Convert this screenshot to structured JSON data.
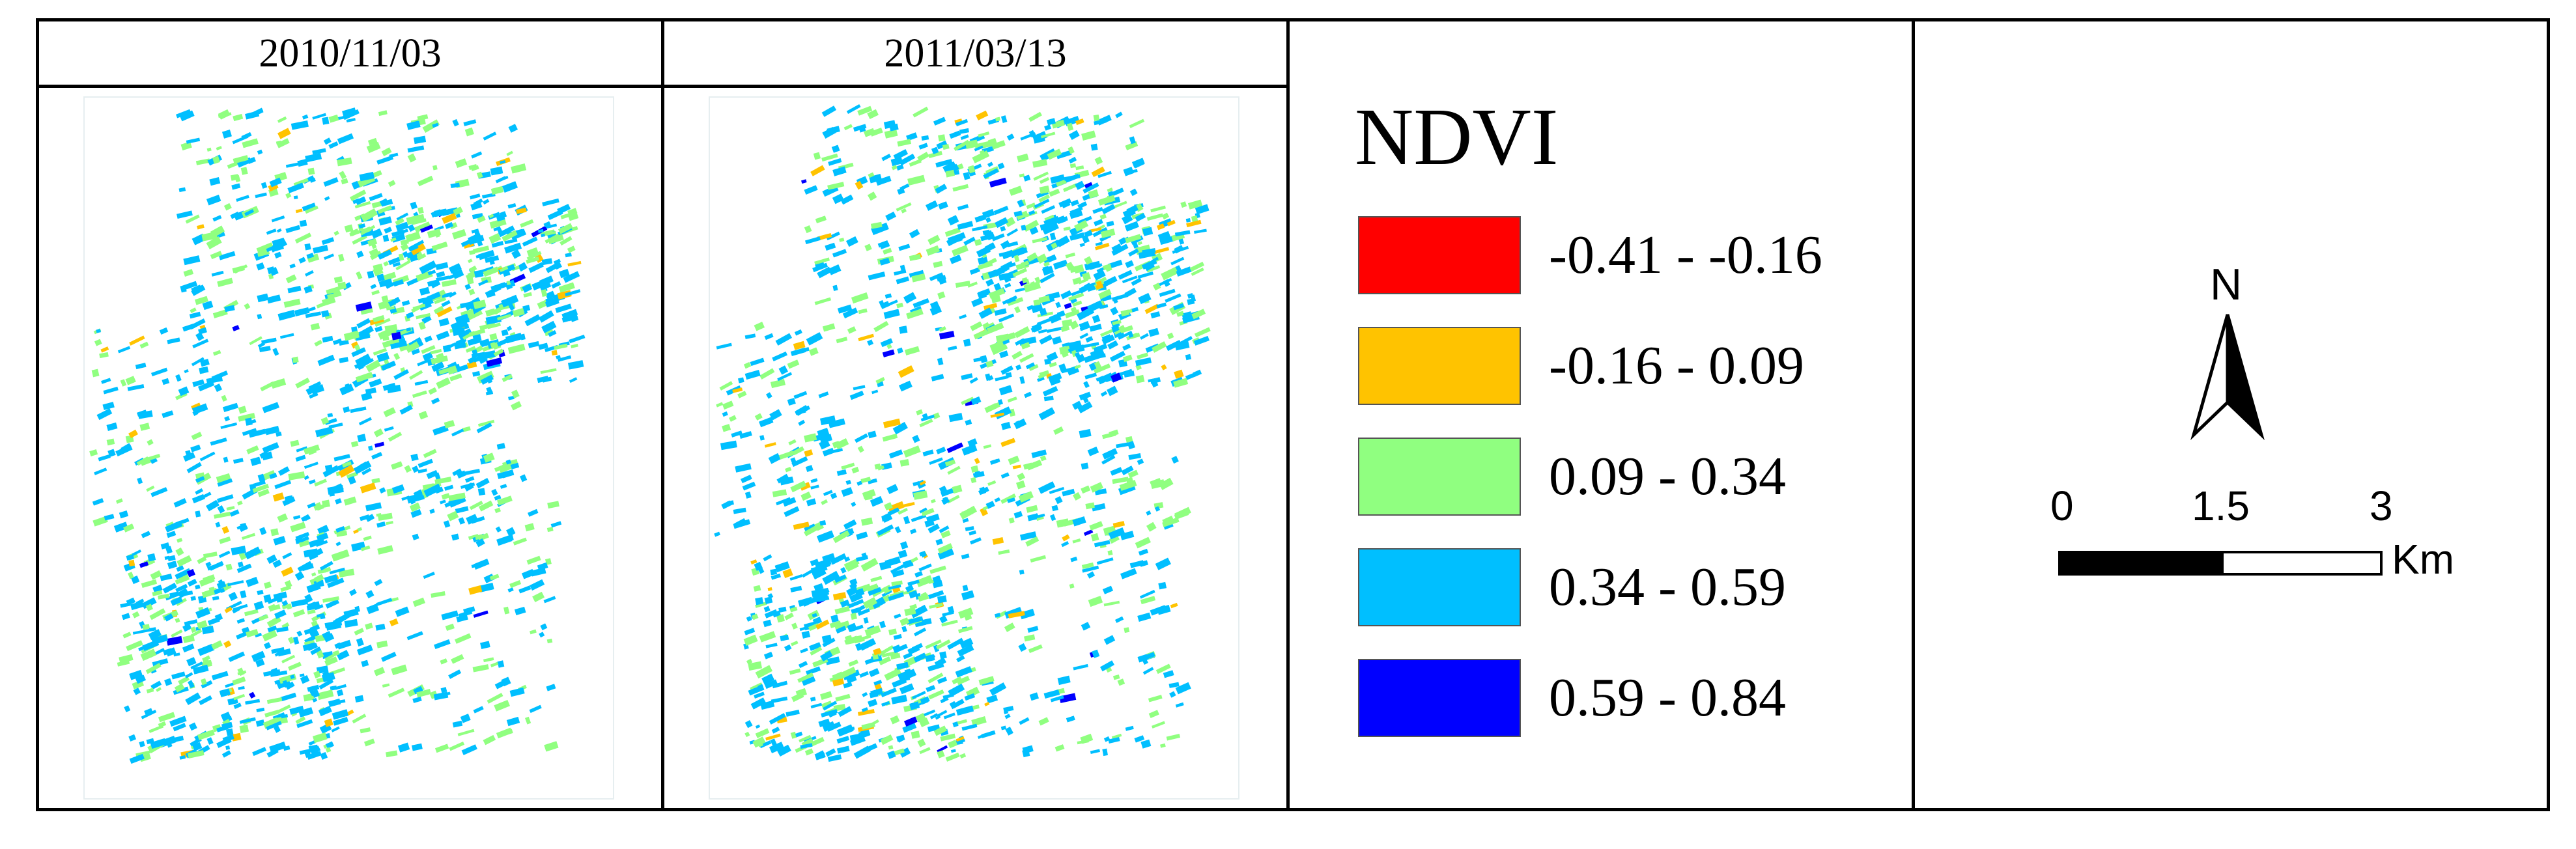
{
  "maps": [
    {
      "date": "2010/11/03"
    },
    {
      "date": "2011/03/13"
    }
  ],
  "legend": {
    "title": "NDVI",
    "classes": [
      {
        "label": "-0.41 - -0.16",
        "color": "#ff0000"
      },
      {
        "label": "-0.16 - 0.09",
        "color": "#ffc300"
      },
      {
        "label": "0.09 - 0.34",
        "color": "#90ff80"
      },
      {
        "label": "0.34 - 0.59",
        "color": "#00bfff"
      },
      {
        "label": "0.59 - 0.84",
        "color": "#0000ff"
      }
    ]
  },
  "north_arrow": {
    "label": "N"
  },
  "scale_bar": {
    "ticks": [
      "0",
      "1.5",
      "3"
    ],
    "unit": "Km"
  }
}
